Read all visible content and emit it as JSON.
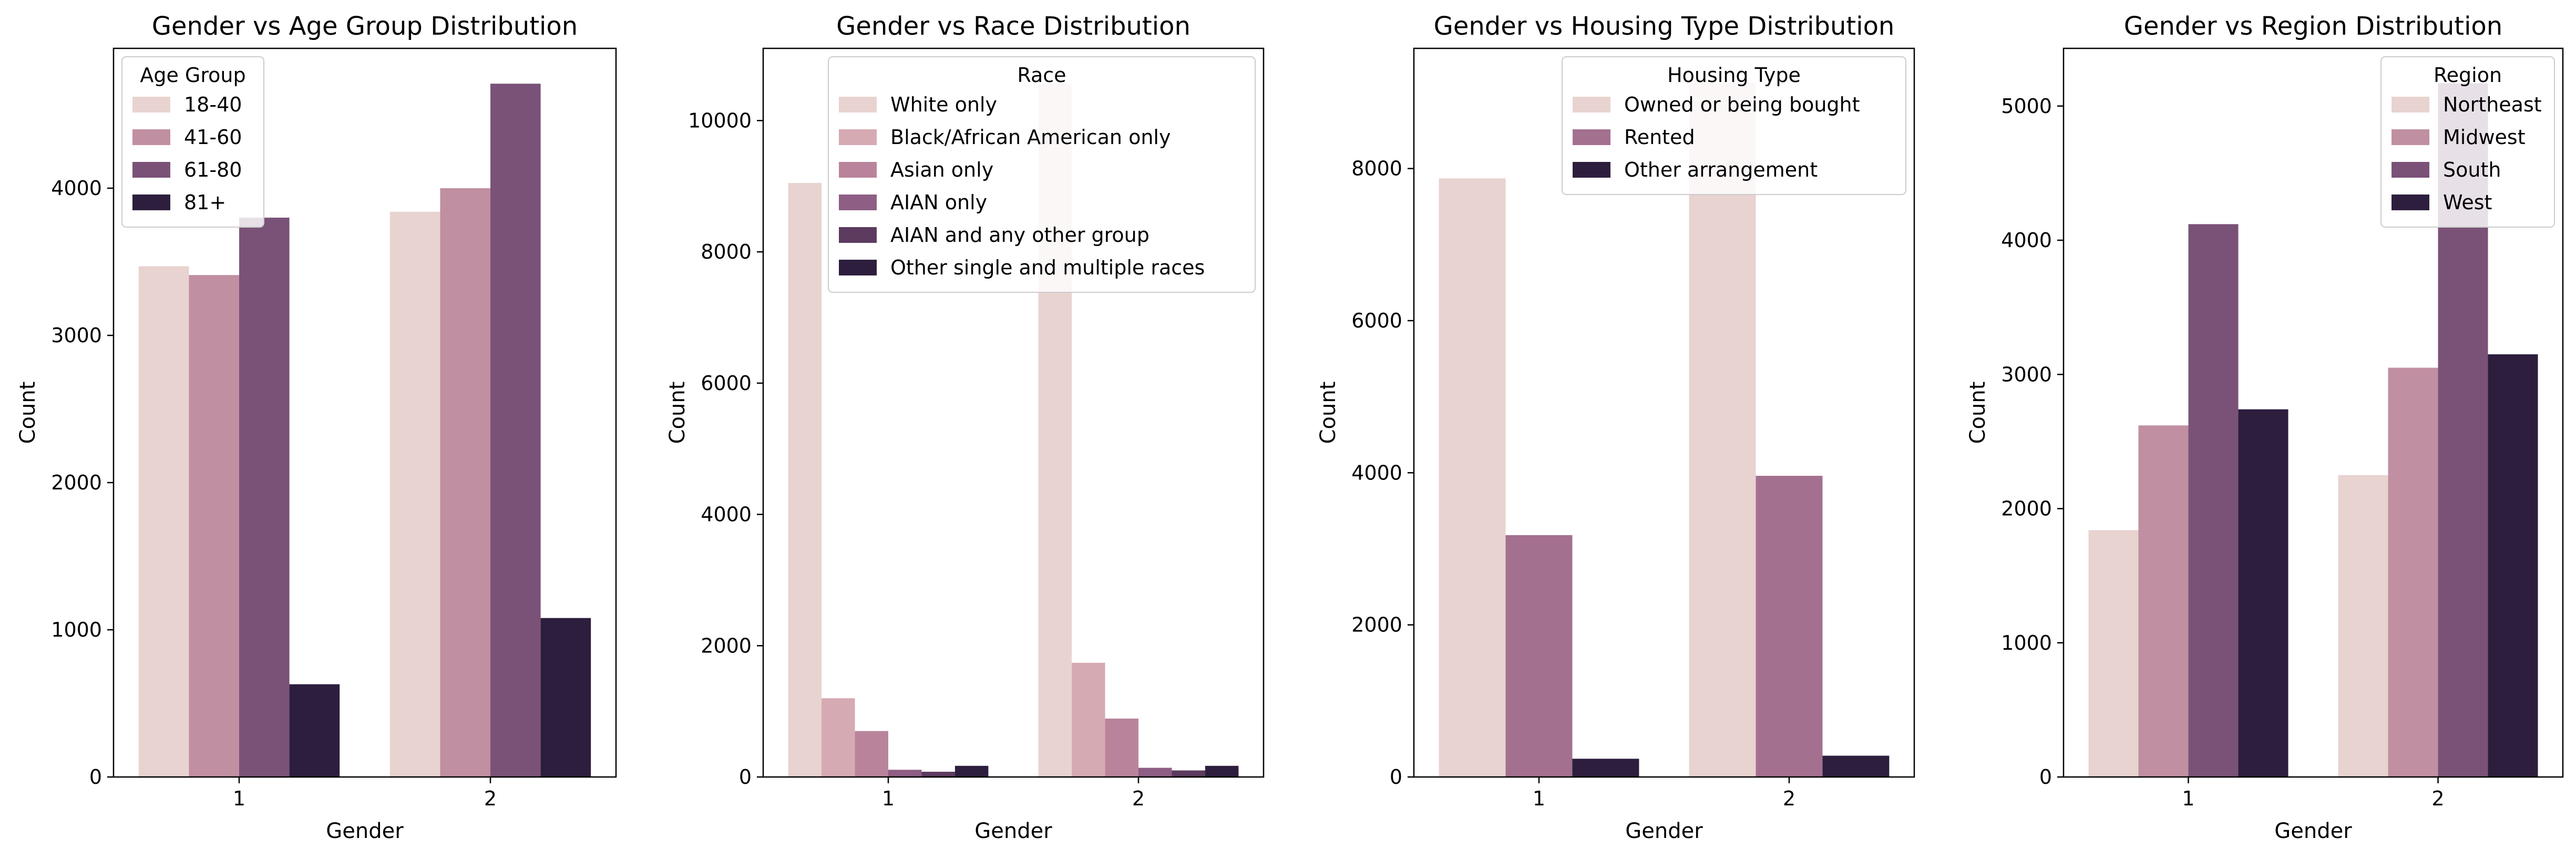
{
  "chart_data": [
    {
      "type": "bar",
      "title": "Gender vs Age Group Distribution",
      "xlabel": "Gender",
      "ylabel": "Count",
      "categories": [
        "1",
        "2"
      ],
      "ylim": [
        0,
        4950
      ],
      "yticks": [
        0,
        1000,
        2000,
        3000,
        4000
      ],
      "legend_title": "Age Group",
      "legend_loc": "top-left",
      "series": [
        {
          "name": "18-40",
          "color": "#e8d3d0",
          "values": [
            3470,
            3840
          ]
        },
        {
          "name": "41-60",
          "color": "#c08fa1",
          "values": [
            3410,
            4000
          ]
        },
        {
          "name": "61-80",
          "color": "#7a5278",
          "values": [
            3800,
            4710
          ]
        },
        {
          "name": "81+",
          "color": "#2d1e3e",
          "values": [
            630,
            1080
          ]
        }
      ]
    },
    {
      "type": "bar",
      "title": "Gender vs Race Distribution",
      "xlabel": "Gender",
      "ylabel": "Count",
      "categories": [
        "1",
        "2"
      ],
      "ylim": [
        0,
        11100
      ],
      "yticks": [
        0,
        2000,
        4000,
        6000,
        8000,
        10000
      ],
      "legend_title": "Race",
      "legend_loc": "top-right",
      "series": [
        {
          "name": "White only",
          "color": "#e8d3d0",
          "values": [
            9050,
            10560
          ]
        },
        {
          "name": "Black/African American only",
          "color": "#d6aab2",
          "values": [
            1200,
            1740
          ]
        },
        {
          "name": "Asian only",
          "color": "#b9849b",
          "values": [
            700,
            890
          ]
        },
        {
          "name": "AIAN only",
          "color": "#8e5e84",
          "values": [
            110,
            140
          ]
        },
        {
          "name": "AIAN and any other group",
          "color": "#5c3b5f",
          "values": [
            80,
            100
          ]
        },
        {
          "name": "Other single and multiple races",
          "color": "#2d1e3e",
          "values": [
            170,
            170
          ]
        }
      ]
    },
    {
      "type": "bar",
      "title": "Gender vs Housing Type Distribution",
      "xlabel": "Gender",
      "ylabel": "Count",
      "categories": [
        "1",
        "2"
      ],
      "ylim": [
        0,
        9580
      ],
      "yticks": [
        0,
        2000,
        4000,
        6000,
        8000
      ],
      "legend_title": "Housing Type",
      "legend_loc": "top-right",
      "series": [
        {
          "name": "Owned or being bought",
          "color": "#e8d3d0",
          "values": [
            7870,
            9130
          ]
        },
        {
          "name": "Rented",
          "color": "#a3708f",
          "values": [
            3180,
            3960
          ]
        },
        {
          "name": "Other arrangement",
          "color": "#2d1e3e",
          "values": [
            240,
            280
          ]
        }
      ]
    },
    {
      "type": "bar",
      "title": "Gender vs Region Distribution",
      "xlabel": "Gender",
      "ylabel": "Count",
      "categories": [
        "1",
        "2"
      ],
      "ylim": [
        0,
        5430
      ],
      "yticks": [
        0,
        1000,
        2000,
        3000,
        4000,
        5000
      ],
      "legend_title": "Region",
      "legend_loc": "top-right",
      "series": [
        {
          "name": "Northeast",
          "color": "#e8d3d0",
          "values": [
            1840,
            2250
          ]
        },
        {
          "name": "Midwest",
          "color": "#c08fa1",
          "values": [
            2620,
            3050
          ]
        },
        {
          "name": "South",
          "color": "#7a5278",
          "values": [
            4120,
            5170
          ]
        },
        {
          "name": "West",
          "color": "#2d1e3e",
          "values": [
            2740,
            3150
          ]
        }
      ]
    }
  ]
}
